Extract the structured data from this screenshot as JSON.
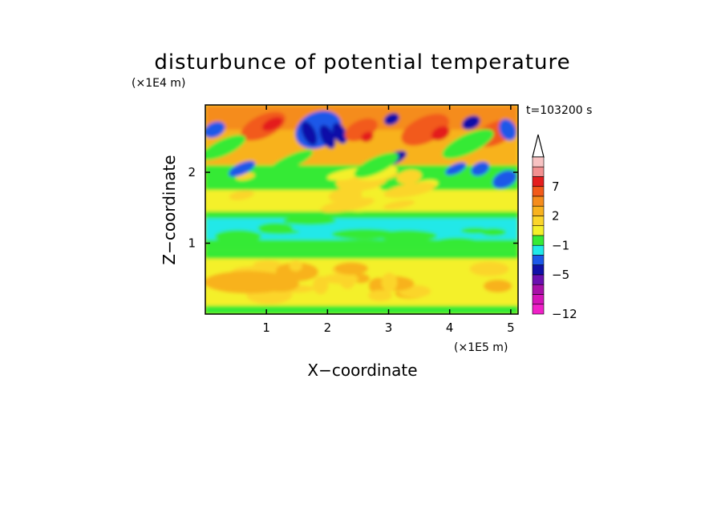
{
  "chart_data": {
    "type": "heatmap",
    "title": "disturbunce of potential temperature",
    "time_label": "t=103200 s",
    "xlabel": "X−coordinate",
    "ylabel": "Z−coordinate",
    "x_scale_label": "(×1E5 m)",
    "y_scale_label": "(×1E4 m)",
    "xlim": [
      0,
      5.12
    ],
    "ylim": [
      0,
      2.95
    ],
    "x_ticks": [
      {
        "value": 1,
        "label": "1"
      },
      {
        "value": 2,
        "label": "2"
      },
      {
        "value": 3,
        "label": "3"
      },
      {
        "value": 4,
        "label": "4"
      },
      {
        "value": 5,
        "label": "5"
      }
    ],
    "y_ticks": [
      {
        "value": 1,
        "label": "1"
      },
      {
        "value": 2,
        "label": "2"
      }
    ],
    "colorbar": {
      "levels_top_to_bottom": [
        {
          "color": "#f7c2c2"
        },
        {
          "color": "#f29090"
        },
        {
          "color": "#e41e1e",
          "label": "7"
        },
        {
          "color": "#f25a1a"
        },
        {
          "color": "#f58c1c"
        },
        {
          "color": "#f8b21e",
          "label": "2"
        },
        {
          "color": "#fbd52a"
        },
        {
          "color": "#f4f02a"
        },
        {
          "color": "#36ea36",
          "label": "−1"
        },
        {
          "color": "#20e8e8"
        },
        {
          "color": "#1c58e8"
        },
        {
          "color": "#1010a8",
          "label": "−5"
        },
        {
          "color": "#6a10b0"
        },
        {
          "color": "#a810a8"
        },
        {
          "color": "#d414b8"
        },
        {
          "color": "#f020c8",
          "label": "−12"
        }
      ],
      "extend_top": true
    }
  }
}
